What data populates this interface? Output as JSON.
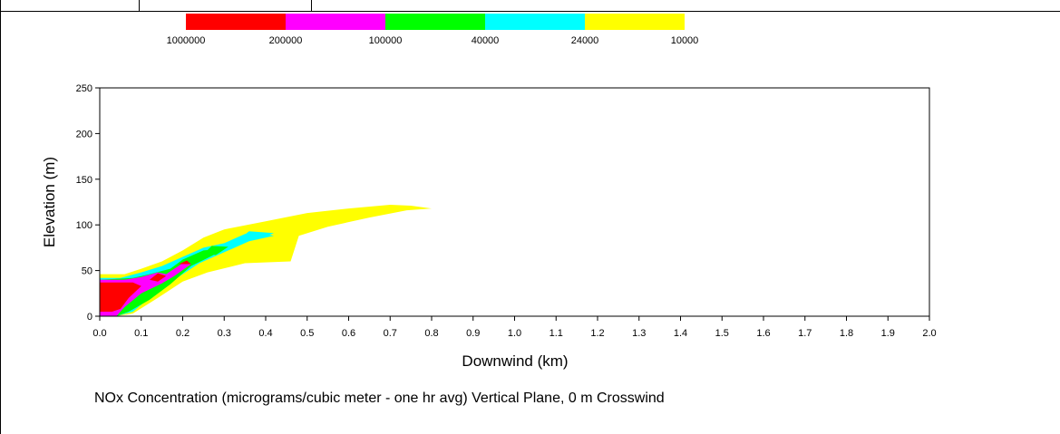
{
  "caption": "NOx Concentration (micrograms/cubic meter - one hr avg) Vertical Plane, 0 m Crosswind",
  "chart_data": {
    "type": "heatmap",
    "title": "",
    "xlabel": "Downwind (km)",
    "ylabel": "Elevation (m)",
    "xlim": [
      0.0,
      2.0
    ],
    "ylim": [
      0,
      250
    ],
    "grid": false,
    "x_ticks": [
      "0.0",
      "0.1",
      "0.2",
      "0.3",
      "0.4",
      "0.5",
      "0.6",
      "0.7",
      "0.8",
      "0.9",
      "1.0",
      "1.1",
      "1.2",
      "1.3",
      "1.4",
      "1.5",
      "1.6",
      "1.7",
      "1.8",
      "1.9",
      "2.0"
    ],
    "y_ticks": [
      "0",
      "50",
      "100",
      "150",
      "200",
      "250"
    ],
    "legend": {
      "placement": "top",
      "colors": [
        "#ff0000",
        "#ff00ff",
        "#00ff00",
        "#00ffff",
        "#ffff00"
      ],
      "labels": [
        "1000000",
        "200000",
        "100000",
        "40000",
        "24000",
        "10000"
      ]
    },
    "contours": [
      {
        "level": "10000",
        "color": "#ffff00",
        "points": [
          [
            0.0,
            0
          ],
          [
            0.0,
            46
          ],
          [
            0.06,
            46
          ],
          [
            0.1,
            52
          ],
          [
            0.15,
            60
          ],
          [
            0.2,
            72
          ],
          [
            0.25,
            86
          ],
          [
            0.3,
            95
          ],
          [
            0.4,
            104
          ],
          [
            0.5,
            113
          ],
          [
            0.6,
            118
          ],
          [
            0.7,
            122
          ],
          [
            0.75,
            121
          ],
          [
            0.8,
            118
          ],
          [
            0.74,
            116
          ],
          [
            0.65,
            108
          ],
          [
            0.55,
            98
          ],
          [
            0.48,
            88
          ],
          [
            0.46,
            60
          ],
          [
            0.35,
            58
          ],
          [
            0.26,
            48
          ],
          [
            0.2,
            38
          ],
          [
            0.14,
            20
          ],
          [
            0.08,
            3
          ],
          [
            0.04,
            0
          ]
        ]
      },
      {
        "level": "24000",
        "color": "#00ffff",
        "points": [
          [
            0.0,
            0
          ],
          [
            0.0,
            42
          ],
          [
            0.05,
            42
          ],
          [
            0.1,
            48
          ],
          [
            0.15,
            55
          ],
          [
            0.2,
            65
          ],
          [
            0.25,
            75
          ],
          [
            0.3,
            80
          ],
          [
            0.35,
            90
          ],
          [
            0.38,
            92
          ],
          [
            0.42,
            88
          ],
          [
            0.36,
            82
          ],
          [
            0.3,
            70
          ],
          [
            0.24,
            58
          ],
          [
            0.18,
            40
          ],
          [
            0.12,
            20
          ],
          [
            0.08,
            5
          ],
          [
            0.04,
            0
          ]
        ]
      },
      {
        "level": "40000",
        "color": "#00ff00",
        "points": [
          [
            0.0,
            0
          ],
          [
            0.0,
            40
          ],
          [
            0.08,
            42
          ],
          [
            0.12,
            46
          ],
          [
            0.17,
            52
          ],
          [
            0.2,
            62
          ],
          [
            0.25,
            72
          ],
          [
            0.3,
            74
          ],
          [
            0.27,
            66
          ],
          [
            0.22,
            55
          ],
          [
            0.17,
            35
          ],
          [
            0.12,
            18
          ],
          [
            0.07,
            5
          ],
          [
            0.04,
            0
          ]
        ]
      },
      {
        "level": "100000",
        "color": "#ff00ff",
        "points": [
          [
            0.0,
            0
          ],
          [
            0.0,
            40
          ],
          [
            0.06,
            40
          ],
          [
            0.1,
            43
          ],
          [
            0.14,
            48
          ],
          [
            0.16,
            46
          ],
          [
            0.2,
            58
          ],
          [
            0.22,
            57
          ],
          [
            0.18,
            44
          ],
          [
            0.15,
            36
          ],
          [
            0.1,
            25
          ],
          [
            0.06,
            10
          ],
          [
            0.04,
            0
          ]
        ]
      },
      {
        "level": "200000",
        "color": "#ff0000",
        "points": [
          [
            0.0,
            5
          ],
          [
            0.0,
            37
          ],
          [
            0.08,
            37
          ],
          [
            0.1,
            33
          ],
          [
            0.07,
            20
          ],
          [
            0.05,
            8
          ],
          [
            0.03,
            5
          ]
        ]
      },
      {
        "level": "1000000",
        "color": "#ff0000",
        "points": [
          [
            0.12,
            40
          ],
          [
            0.14,
            47
          ],
          [
            0.16,
            44
          ],
          [
            0.14,
            38
          ]
        ]
      },
      {
        "level": "1000000",
        "color": "#ff0000",
        "points": [
          [
            0.19,
            57
          ],
          [
            0.21,
            61
          ],
          [
            0.22,
            57
          ]
        ]
      }
    ],
    "highlights": [
      {
        "color": "#00ff00",
        "points": [
          [
            0.25,
            68
          ],
          [
            0.27,
            77
          ],
          [
            0.31,
            76
          ],
          [
            0.28,
            67
          ]
        ]
      },
      {
        "color": "#00ffff",
        "points": [
          [
            0.34,
            86
          ],
          [
            0.36,
            93
          ],
          [
            0.42,
            91
          ],
          [
            0.38,
            84
          ]
        ]
      }
    ]
  }
}
